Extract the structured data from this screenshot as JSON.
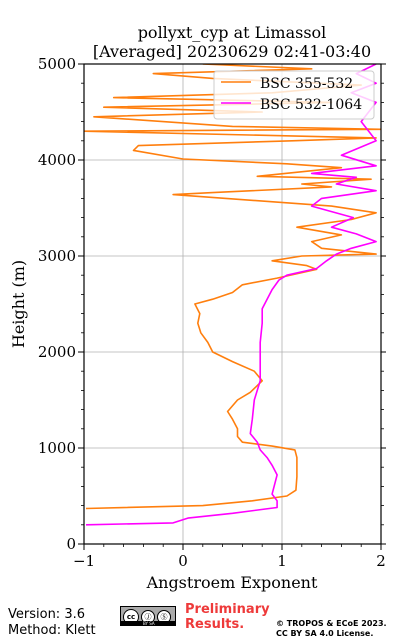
{
  "chart_data": {
    "type": "line",
    "title_line1": "pollyxt_cyp at Limassol",
    "title_line2": "[Averaged] 20230629 02:41-03:40",
    "xlabel": "Angstroem Exponent",
    "ylabel": "Height (m)",
    "xlim": [
      -1,
      2
    ],
    "ylim": [
      0,
      5000
    ],
    "x_ticks": [
      "−1",
      "0",
      "1",
      "2"
    ],
    "y_ticks": [
      "0",
      "1000",
      "2000",
      "3000",
      "4000",
      "5000"
    ],
    "x_tick_values": [
      -1,
      0,
      1,
      2
    ],
    "y_tick_values": [
      0,
      1000,
      2000,
      3000,
      4000,
      5000
    ],
    "grid": true,
    "legend_position": "top-right",
    "series": [
      {
        "name": "BSC 355-532",
        "color": "#ff7f0e",
        "points": [
          [
            -0.98,
            370
          ],
          [
            0.2,
            400
          ],
          [
            0.7,
            450
          ],
          [
            1.05,
            500
          ],
          [
            1.14,
            560
          ],
          [
            1.15,
            700
          ],
          [
            1.15,
            900
          ],
          [
            1.13,
            980
          ],
          [
            0.9,
            1020
          ],
          [
            0.6,
            1060
          ],
          [
            0.55,
            1120
          ],
          [
            0.55,
            1200
          ],
          [
            0.5,
            1300
          ],
          [
            0.45,
            1380
          ],
          [
            0.55,
            1500
          ],
          [
            0.68,
            1580
          ],
          [
            0.8,
            1700
          ],
          [
            0.72,
            1800
          ],
          [
            0.5,
            1900
          ],
          [
            0.3,
            2000
          ],
          [
            0.25,
            2100
          ],
          [
            0.18,
            2200
          ],
          [
            0.15,
            2300
          ],
          [
            0.17,
            2400
          ],
          [
            0.12,
            2500
          ],
          [
            0.3,
            2550
          ],
          [
            0.5,
            2620
          ],
          [
            0.6,
            2700
          ],
          [
            0.95,
            2770
          ],
          [
            1.35,
            2860
          ],
          [
            1.25,
            2900
          ],
          [
            0.9,
            2950
          ],
          [
            1.2,
            3000
          ],
          [
            1.95,
            3020
          ],
          [
            1.4,
            3080
          ],
          [
            1.3,
            3150
          ],
          [
            1.6,
            3220
          ],
          [
            1.15,
            3300
          ],
          [
            1.7,
            3380
          ],
          [
            1.95,
            3450
          ],
          [
            1.5,
            3520
          ],
          [
            -0.1,
            3640
          ],
          [
            0.3,
            3660
          ],
          [
            1.5,
            3720
          ],
          [
            1.2,
            3750
          ],
          [
            1.9,
            3800
          ],
          [
            0.75,
            3830
          ],
          [
            1.6,
            3920
          ],
          [
            1.05,
            3960
          ],
          [
            0.0,
            4010
          ],
          [
            -0.5,
            4100
          ],
          [
            -0.45,
            4150
          ],
          [
            1.1,
            4200
          ],
          [
            1.95,
            4230
          ],
          [
            -1.0,
            4300
          ],
          [
            2.0,
            4320
          ],
          [
            0.5,
            4350
          ],
          [
            -0.9,
            4450
          ],
          [
            0.8,
            4500
          ],
          [
            -0.8,
            4550
          ],
          [
            1.5,
            4600
          ],
          [
            -0.7,
            4650
          ],
          [
            0.9,
            4700
          ],
          [
            1.8,
            4780
          ],
          [
            0.3,
            4850
          ],
          [
            -0.3,
            4900
          ],
          [
            1.3,
            4950
          ],
          [
            0.2,
            5000
          ]
        ]
      },
      {
        "name": "BSC 532-1064",
        "color": "#ff00ff",
        "points": [
          [
            -0.98,
            200
          ],
          [
            -0.1,
            220
          ],
          [
            0.05,
            270
          ],
          [
            0.5,
            320
          ],
          [
            0.95,
            380
          ],
          [
            0.95,
            450
          ],
          [
            0.9,
            520
          ],
          [
            0.92,
            600
          ],
          [
            0.95,
            720
          ],
          [
            0.9,
            820
          ],
          [
            0.85,
            900
          ],
          [
            0.78,
            980
          ],
          [
            0.75,
            1060
          ],
          [
            0.68,
            1150
          ],
          [
            0.7,
            1300
          ],
          [
            0.72,
            1500
          ],
          [
            0.78,
            1700
          ],
          [
            0.78,
            1900
          ],
          [
            0.78,
            2100
          ],
          [
            0.8,
            2300
          ],
          [
            0.8,
            2450
          ],
          [
            0.85,
            2550
          ],
          [
            0.9,
            2650
          ],
          [
            0.97,
            2750
          ],
          [
            1.05,
            2800
          ],
          [
            1.35,
            2870
          ],
          [
            1.45,
            2950
          ],
          [
            1.55,
            3020
          ],
          [
            1.7,
            3080
          ],
          [
            1.95,
            3150
          ],
          [
            1.75,
            3230
          ],
          [
            1.5,
            3300
          ],
          [
            1.72,
            3400
          ],
          [
            1.3,
            3520
          ],
          [
            1.4,
            3600
          ],
          [
            1.95,
            3680
          ],
          [
            1.55,
            3750
          ],
          [
            1.75,
            3820
          ],
          [
            1.3,
            3860
          ],
          [
            1.95,
            3940
          ],
          [
            1.6,
            4050
          ],
          [
            1.95,
            4200
          ],
          [
            1.8,
            4400
          ],
          [
            1.95,
            4600
          ],
          [
            1.7,
            4700
          ],
          [
            1.95,
            4800
          ],
          [
            1.75,
            4900
          ],
          [
            1.95,
            5000
          ]
        ]
      }
    ]
  },
  "footer": {
    "version": "Version: 3.6",
    "method": "Method: Klett",
    "prelim_line1": "Preliminary",
    "prelim_line2": "Results.",
    "copyright_line1": "© TROPOS & ECoE 2023.",
    "copyright_line2": "CC BY SA 4.0 License.",
    "cc_badge_text": "cc",
    "by_glyph": "Ⓙ",
    "sa_glyph": "Ⓢ",
    "badge_caption": "BY SA"
  }
}
